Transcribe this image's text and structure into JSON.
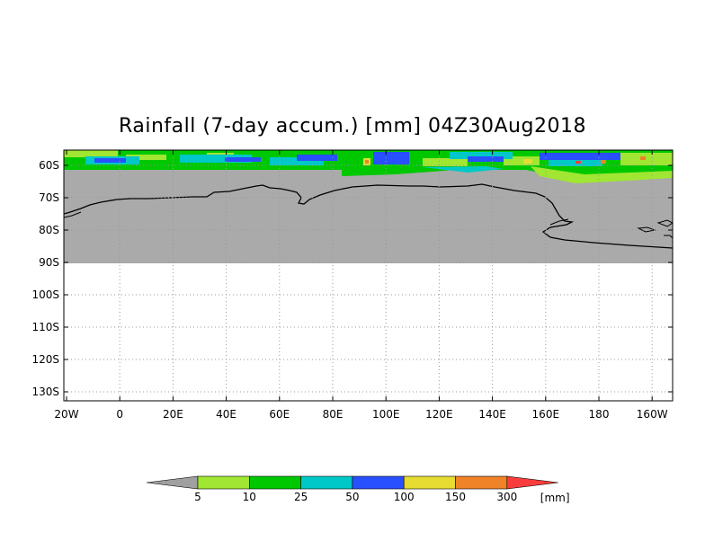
{
  "title": "Rainfall (7-day accum.) [mm] 04Z30Aug2018",
  "map": {
    "lat_labels": [
      "60S",
      "70S",
      "80S",
      "90S",
      "100S",
      "110S",
      "120S",
      "130S"
    ],
    "lon_labels": [
      "20W",
      "0",
      "20E",
      "40E",
      "60E",
      "80E",
      "100E",
      "120E",
      "140E",
      "160E",
      "180",
      "160W"
    ],
    "missing_color": "#aaaaaa",
    "grid_color": "#999999"
  },
  "colorbar": {
    "colors": [
      "#a0a0a0",
      "#a0e632",
      "#00c800",
      "#00c8c8",
      "#2850ff",
      "#e6dc32",
      "#f08228",
      "#fa3c3c"
    ],
    "tick_labels": [
      "5",
      "10",
      "25",
      "50",
      "100",
      "150",
      "300"
    ],
    "unit": "[mm]"
  }
}
